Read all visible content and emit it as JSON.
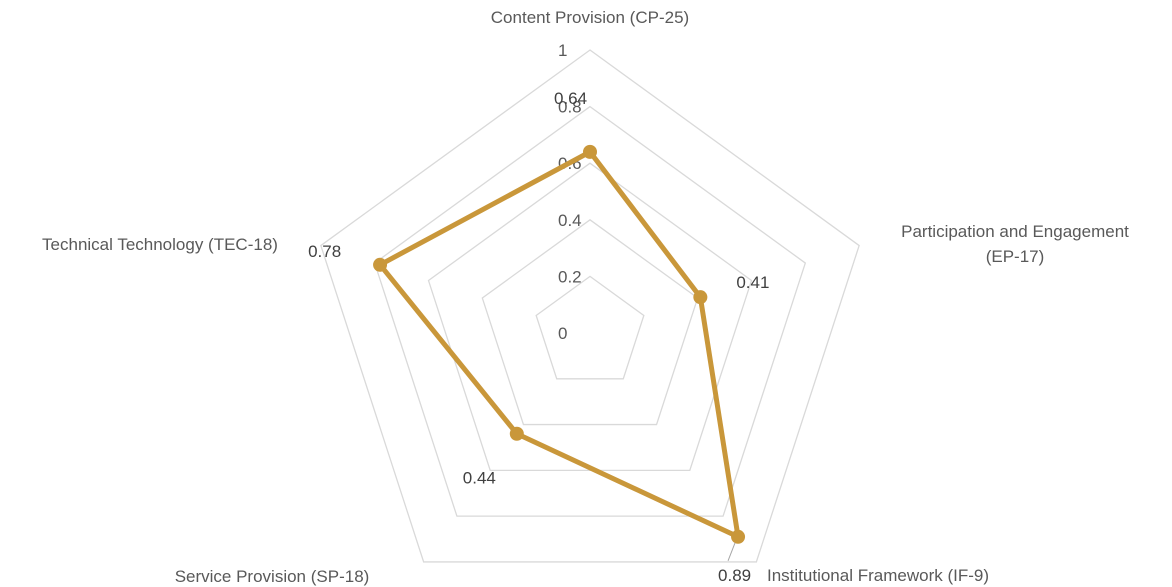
{
  "chart_data": {
    "type": "radar",
    "axes": [
      {
        "label_lines": [
          "Content Provision (CP-25)"
        ]
      },
      {
        "label_lines": [
          "Participation and Engagement",
          "(EP-17)"
        ]
      },
      {
        "label_lines": [
          "Institutional Framework (IF-9)"
        ]
      },
      {
        "label_lines": [
          "Service Provision (SP-18)"
        ]
      },
      {
        "label_lines": [
          "Technical Technology (TEC-18)"
        ]
      }
    ],
    "series": [
      {
        "values": [
          0.64,
          0.41,
          0.89,
          0.44,
          0.78
        ],
        "color": "#c9973a"
      }
    ],
    "data_labels": [
      "0.64",
      "0.41",
      "0.89",
      "0.44",
      "0.78"
    ],
    "r_ticks": [
      0,
      0.2,
      0.4,
      0.6,
      0.8,
      1
    ],
    "r_tick_labels": [
      "0",
      "0.2",
      "0.4",
      "0.6",
      "0.8",
      "1"
    ],
    "rlim": [
      0,
      1
    ],
    "grid": true,
    "legend": "none",
    "grid_color": "#d9d9d9"
  }
}
